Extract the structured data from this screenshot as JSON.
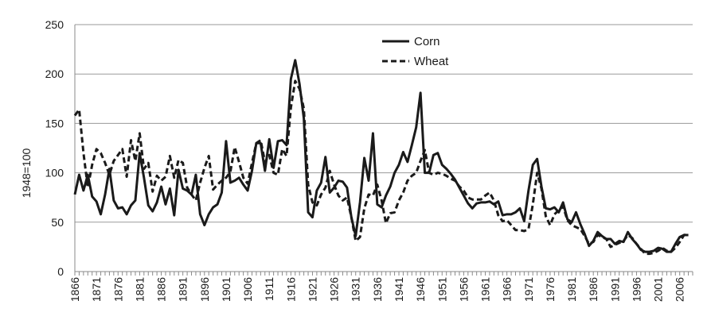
{
  "chart_data": {
    "type": "line",
    "title": "",
    "xlabel": "",
    "ylabel": "1948=100",
    "ylim": [
      0,
      250
    ],
    "yticks": [
      0,
      50,
      100,
      150,
      200,
      250
    ],
    "xlim": [
      1866,
      2009
    ],
    "xticks": [
      "1866",
      "1871",
      "1876",
      "1881",
      "1886",
      "1891",
      "1896",
      "1901",
      "1906",
      "1911",
      "1916",
      "1921",
      "1926",
      "1931",
      "1936",
      "1941",
      "1946",
      "1951",
      "1956",
      "1961",
      "1966",
      "1971",
      "1976",
      "1981",
      "1986",
      "1991",
      "1996",
      "2001",
      "2006"
    ],
    "grid": "horizontal",
    "legend_position": "top-center",
    "series": [
      {
        "name": "Corn",
        "style": "solid",
        "color": "#1a1a1a",
        "points": [
          [
            1866,
            78
          ],
          [
            1867,
            98
          ],
          [
            1868,
            82
          ],
          [
            1869,
            98
          ],
          [
            1870,
            76
          ],
          [
            1871,
            71
          ],
          [
            1872,
            58
          ],
          [
            1873,
            78
          ],
          [
            1874,
            104
          ],
          [
            1875,
            72
          ],
          [
            1876,
            64
          ],
          [
            1877,
            65
          ],
          [
            1878,
            58
          ],
          [
            1879,
            67
          ],
          [
            1880,
            72
          ],
          [
            1881,
            120
          ],
          [
            1882,
            95
          ],
          [
            1883,
            67
          ],
          [
            1884,
            61
          ],
          [
            1885,
            70
          ],
          [
            1886,
            86
          ],
          [
            1887,
            68
          ],
          [
            1888,
            84
          ],
          [
            1889,
            57
          ],
          [
            1890,
            103
          ],
          [
            1891,
            84
          ],
          [
            1892,
            82
          ],
          [
            1893,
            78
          ],
          [
            1894,
            98
          ],
          [
            1895,
            58
          ],
          [
            1896,
            47
          ],
          [
            1897,
            58
          ],
          [
            1898,
            65
          ],
          [
            1899,
            68
          ],
          [
            1900,
            80
          ],
          [
            1901,
            132
          ],
          [
            1902,
            90
          ],
          [
            1903,
            92
          ],
          [
            1904,
            95
          ],
          [
            1905,
            88
          ],
          [
            1906,
            82
          ],
          [
            1907,
            102
          ],
          [
            1908,
            130
          ],
          [
            1909,
            130
          ],
          [
            1910,
            102
          ],
          [
            1911,
            134
          ],
          [
            1912,
            105
          ],
          [
            1913,
            132
          ],
          [
            1914,
            133
          ],
          [
            1915,
            128
          ],
          [
            1916,
            195
          ],
          [
            1917,
            214
          ],
          [
            1918,
            190
          ],
          [
            1919,
            155
          ],
          [
            1920,
            60
          ],
          [
            1921,
            55
          ],
          [
            1922,
            82
          ],
          [
            1923,
            90
          ],
          [
            1924,
            116
          ],
          [
            1925,
            80
          ],
          [
            1926,
            85
          ],
          [
            1927,
            92
          ],
          [
            1928,
            91
          ],
          [
            1929,
            85
          ],
          [
            1930,
            55
          ],
          [
            1931,
            36
          ],
          [
            1932,
            70
          ],
          [
            1933,
            115
          ],
          [
            1934,
            92
          ],
          [
            1935,
            140
          ],
          [
            1936,
            68
          ],
          [
            1937,
            65
          ],
          [
            1938,
            77
          ],
          [
            1939,
            86
          ],
          [
            1940,
            100
          ],
          [
            1941,
            108
          ],
          [
            1942,
            121
          ],
          [
            1943,
            111
          ],
          [
            1944,
            128
          ],
          [
            1945,
            146
          ],
          [
            1946,
            181
          ],
          [
            1947,
            100
          ],
          [
            1948,
            100
          ],
          [
            1949,
            118
          ],
          [
            1950,
            120
          ],
          [
            1951,
            108
          ],
          [
            1952,
            104
          ],
          [
            1953,
            99
          ],
          [
            1954,
            93
          ],
          [
            1955,
            85
          ],
          [
            1956,
            77
          ],
          [
            1957,
            69
          ],
          [
            1958,
            64
          ],
          [
            1959,
            69
          ],
          [
            1960,
            70
          ],
          [
            1961,
            70
          ],
          [
            1962,
            71
          ],
          [
            1963,
            68
          ],
          [
            1964,
            71
          ],
          [
            1965,
            57
          ],
          [
            1966,
            58
          ],
          [
            1967,
            58
          ],
          [
            1968,
            60
          ],
          [
            1969,
            64
          ],
          [
            1970,
            51
          ],
          [
            1971,
            82
          ],
          [
            1972,
            108
          ],
          [
            1973,
            114
          ],
          [
            1974,
            86
          ],
          [
            1975,
            64
          ],
          [
            1976,
            63
          ],
          [
            1977,
            65
          ],
          [
            1978,
            60
          ],
          [
            1979,
            70
          ],
          [
            1980,
            53
          ],
          [
            1981,
            50
          ],
          [
            1982,
            60
          ],
          [
            1983,
            48
          ],
          [
            1984,
            38
          ],
          [
            1985,
            26
          ],
          [
            1986,
            31
          ],
          [
            1987,
            40
          ],
          [
            1988,
            36
          ],
          [
            1989,
            33
          ],
          [
            1990,
            33
          ],
          [
            1991,
            28
          ],
          [
            1992,
            31
          ],
          [
            1993,
            30
          ],
          [
            1994,
            40
          ],
          [
            1995,
            33
          ],
          [
            1996,
            28
          ],
          [
            1997,
            22
          ],
          [
            1998,
            20
          ],
          [
            1999,
            20
          ],
          [
            2000,
            21
          ],
          [
            2001,
            24
          ],
          [
            2002,
            23
          ],
          [
            2003,
            20
          ],
          [
            2004,
            20
          ],
          [
            2005,
            28
          ],
          [
            2006,
            35
          ],
          [
            2007,
            37
          ],
          [
            2008,
            37
          ]
        ]
      },
      {
        "name": "Wheat",
        "style": "dashed",
        "color": "#1a1a1a",
        "points": [
          [
            1866,
            158
          ],
          [
            1867,
            164
          ],
          [
            1868,
            120
          ],
          [
            1869,
            85
          ],
          [
            1870,
            108
          ],
          [
            1871,
            124
          ],
          [
            1872,
            120
          ],
          [
            1873,
            110
          ],
          [
            1874,
            98
          ],
          [
            1875,
            112
          ],
          [
            1876,
            118
          ],
          [
            1877,
            124
          ],
          [
            1878,
            96
          ],
          [
            1879,
            133
          ],
          [
            1880,
            112
          ],
          [
            1881,
            140
          ],
          [
            1882,
            104
          ],
          [
            1883,
            110
          ],
          [
            1884,
            81
          ],
          [
            1885,
            97
          ],
          [
            1886,
            92
          ],
          [
            1887,
            96
          ],
          [
            1888,
            117
          ],
          [
            1889,
            95
          ],
          [
            1890,
            113
          ],
          [
            1891,
            110
          ],
          [
            1892,
            85
          ],
          [
            1893,
            78
          ],
          [
            1894,
            72
          ],
          [
            1895,
            90
          ],
          [
            1896,
            105
          ],
          [
            1897,
            117
          ],
          [
            1898,
            83
          ],
          [
            1899,
            88
          ],
          [
            1900,
            92
          ],
          [
            1901,
            95
          ],
          [
            1902,
            101
          ],
          [
            1903,
            126
          ],
          [
            1904,
            111
          ],
          [
            1905,
            95
          ],
          [
            1906,
            89
          ],
          [
            1907,
            110
          ],
          [
            1908,
            130
          ],
          [
            1909,
            133
          ],
          [
            1910,
            111
          ],
          [
            1911,
            118
          ],
          [
            1912,
            100
          ],
          [
            1913,
            98
          ],
          [
            1914,
            124
          ],
          [
            1915,
            117
          ],
          [
            1916,
            166
          ],
          [
            1917,
            193
          ],
          [
            1918,
            185
          ],
          [
            1919,
            165
          ],
          [
            1920,
            88
          ],
          [
            1921,
            70
          ],
          [
            1922,
            67
          ],
          [
            1923,
            78
          ],
          [
            1924,
            85
          ],
          [
            1925,
            102
          ],
          [
            1926,
            88
          ],
          [
            1927,
            77
          ],
          [
            1928,
            72
          ],
          [
            1929,
            75
          ],
          [
            1930,
            55
          ],
          [
            1931,
            31
          ],
          [
            1932,
            35
          ],
          [
            1933,
            64
          ],
          [
            1934,
            78
          ],
          [
            1935,
            77
          ],
          [
            1936,
            88
          ],
          [
            1937,
            72
          ],
          [
            1938,
            49
          ],
          [
            1939,
            59
          ],
          [
            1940,
            60
          ],
          [
            1941,
            72
          ],
          [
            1942,
            80
          ],
          [
            1943,
            92
          ],
          [
            1944,
            97
          ],
          [
            1945,
            100
          ],
          [
            1946,
            112
          ],
          [
            1947,
            123
          ],
          [
            1948,
            100
          ],
          [
            1949,
            98
          ],
          [
            1950,
            100
          ],
          [
            1951,
            99
          ],
          [
            1952,
            97
          ],
          [
            1953,
            94
          ],
          [
            1954,
            92
          ],
          [
            1955,
            86
          ],
          [
            1956,
            82
          ],
          [
            1957,
            75
          ],
          [
            1958,
            73
          ],
          [
            1959,
            73
          ],
          [
            1960,
            73
          ],
          [
            1961,
            77
          ],
          [
            1962,
            80
          ],
          [
            1963,
            72
          ],
          [
            1964,
            57
          ],
          [
            1965,
            51
          ],
          [
            1966,
            52
          ],
          [
            1967,
            47
          ],
          [
            1968,
            42
          ],
          [
            1969,
            42
          ],
          [
            1970,
            41
          ],
          [
            1971,
            43
          ],
          [
            1972,
            68
          ],
          [
            1973,
            100
          ],
          [
            1974,
            84
          ],
          [
            1975,
            56
          ],
          [
            1976,
            47
          ],
          [
            1977,
            58
          ],
          [
            1978,
            62
          ],
          [
            1979,
            66
          ],
          [
            1980,
            52
          ],
          [
            1981,
            47
          ],
          [
            1982,
            45
          ],
          [
            1983,
            43
          ],
          [
            1984,
            36
          ],
          [
            1985,
            28
          ],
          [
            1986,
            30
          ],
          [
            1987,
            37
          ],
          [
            1988,
            35
          ],
          [
            1989,
            33
          ],
          [
            1990,
            25
          ],
          [
            1991,
            27
          ],
          [
            1992,
            29
          ],
          [
            1993,
            31
          ],
          [
            1994,
            37
          ],
          [
            1995,
            34
          ],
          [
            1996,
            28
          ],
          [
            1997,
            23
          ],
          [
            1998,
            18
          ],
          [
            1999,
            18
          ],
          [
            2000,
            19
          ],
          [
            2001,
            21
          ],
          [
            2002,
            24
          ],
          [
            2003,
            21
          ],
          [
            2004,
            20
          ],
          [
            2005,
            24
          ],
          [
            2006,
            30
          ],
          [
            2007,
            37
          ],
          [
            2008,
            38
          ]
        ]
      }
    ]
  }
}
